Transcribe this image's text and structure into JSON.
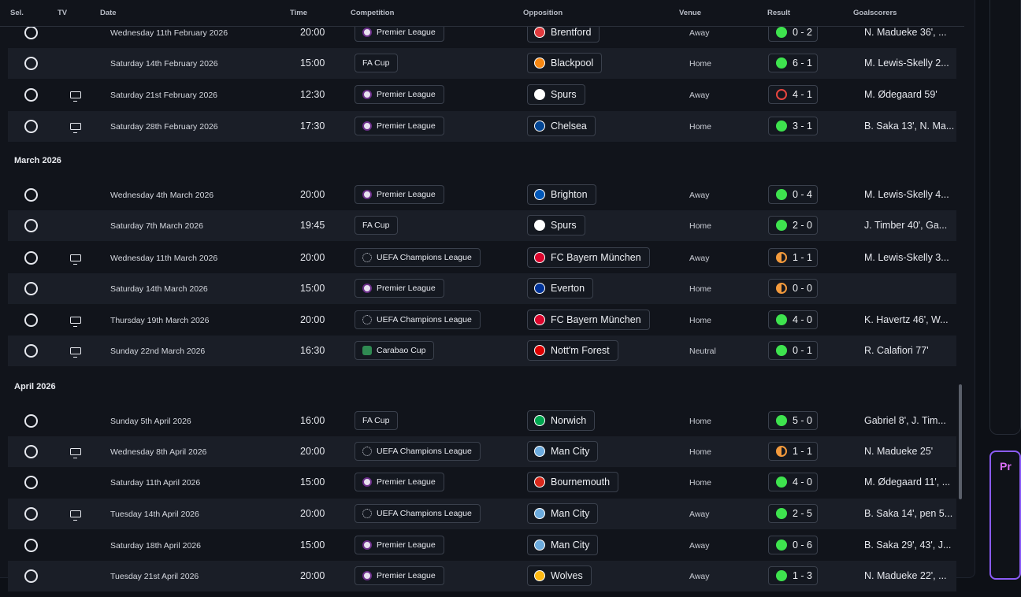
{
  "header": {
    "sel": "Sel.",
    "tv": "TV",
    "date": "Date",
    "time": "Time",
    "competition": "Competition",
    "opposition": "Opposition",
    "venue": "Venue",
    "result": "Result",
    "goalscorers": "Goalscorers"
  },
  "months": {
    "march": "March 2026",
    "april": "April 2026"
  },
  "fixtures": [
    {
      "tv": false,
      "date": "Wednesday 11th February 2026",
      "time": "20:00",
      "competition": "Premier League",
      "comp_icon": "premier-league",
      "opponent": "Brentford",
      "crest_color": "#e03a3e",
      "venue": "Away",
      "outcome": "W",
      "score": "0 - 2",
      "scorers": "N. Madueke 36', ..."
    },
    {
      "tv": false,
      "date": "Saturday 14th February 2026",
      "time": "15:00",
      "competition": "FA Cup",
      "comp_icon": "none",
      "opponent": "Blackpool",
      "crest_color": "#f68712",
      "venue": "Home",
      "outcome": "W",
      "score": "6 - 1",
      "scorers": "M. Lewis-Skelly 2..."
    },
    {
      "tv": true,
      "date": "Saturday 21st February 2026",
      "time": "12:30",
      "competition": "Premier League",
      "comp_icon": "premier-league",
      "opponent": "Spurs",
      "crest_color": "#ffffff",
      "venue": "Away",
      "outcome": "L",
      "score": "4 - 1",
      "scorers": "M. Ødegaard 59'"
    },
    {
      "tv": true,
      "date": "Saturday 28th February 2026",
      "time": "17:30",
      "competition": "Premier League",
      "comp_icon": "premier-league",
      "opponent": "Chelsea",
      "crest_color": "#034694",
      "venue": "Home",
      "outcome": "W",
      "score": "3 - 1",
      "scorers": "B. Saka 13', N. Ma..."
    },
    {
      "tv": false,
      "date": "Wednesday 4th March 2026",
      "time": "20:00",
      "competition": "Premier League",
      "comp_icon": "premier-league",
      "opponent": "Brighton",
      "crest_color": "#0057b8",
      "venue": "Away",
      "outcome": "W",
      "score": "0 - 4",
      "scorers": "M. Lewis-Skelly 4..."
    },
    {
      "tv": false,
      "date": "Saturday 7th March 2026",
      "time": "19:45",
      "competition": "FA Cup",
      "comp_icon": "none",
      "opponent": "Spurs",
      "crest_color": "#ffffff",
      "venue": "Home",
      "outcome": "W",
      "score": "2 - 0",
      "scorers": "J. Timber 40', Ga..."
    },
    {
      "tv": true,
      "date": "Wednesday 11th March 2026",
      "time": "20:00",
      "competition": "UEFA Champions League",
      "comp_icon": "champions-league",
      "opponent": "FC Bayern München",
      "crest_color": "#dc052d",
      "venue": "Away",
      "outcome": "D",
      "score": "1 - 1",
      "scorers": "M. Lewis-Skelly 3..."
    },
    {
      "tv": false,
      "date": "Saturday 14th March 2026",
      "time": "15:00",
      "competition": "Premier League",
      "comp_icon": "premier-league",
      "opponent": "Everton",
      "crest_color": "#003399",
      "venue": "Home",
      "outcome": "D",
      "score": "0 - 0",
      "scorers": ""
    },
    {
      "tv": true,
      "date": "Thursday 19th March 2026",
      "time": "20:00",
      "competition": "UEFA Champions League",
      "comp_icon": "champions-league",
      "opponent": "FC Bayern München",
      "crest_color": "#dc052d",
      "venue": "Home",
      "outcome": "W",
      "score": "4 - 0",
      "scorers": "K. Havertz 46', W..."
    },
    {
      "tv": true,
      "date": "Sunday 22nd March 2026",
      "time": "16:30",
      "competition": "Carabao Cup",
      "comp_icon": "carabao-cup",
      "opponent": "Nott'm Forest",
      "crest_color": "#dd0000",
      "venue": "Neutral",
      "outcome": "W",
      "score": "0 - 1",
      "scorers": "R. Calafiori 77'"
    },
    {
      "tv": false,
      "date": "Sunday 5th April 2026",
      "time": "16:00",
      "competition": "FA Cup",
      "comp_icon": "none",
      "opponent": "Norwich",
      "crest_color": "#00a650",
      "venue": "Home",
      "outcome": "W",
      "score": "5 - 0",
      "scorers": "Gabriel 8', J. Tim..."
    },
    {
      "tv": true,
      "date": "Wednesday 8th April 2026",
      "time": "20:00",
      "competition": "UEFA Champions League",
      "comp_icon": "champions-league",
      "opponent": "Man City",
      "crest_color": "#6cabdd",
      "venue": "Home",
      "outcome": "D",
      "score": "1 - 1",
      "scorers": "N. Madueke 25'"
    },
    {
      "tv": false,
      "date": "Saturday 11th April 2026",
      "time": "15:00",
      "competition": "Premier League",
      "comp_icon": "premier-league",
      "opponent": "Bournemouth",
      "crest_color": "#da291c",
      "venue": "Home",
      "outcome": "W",
      "score": "4 - 0",
      "scorers": "M. Ødegaard 11', ..."
    },
    {
      "tv": true,
      "date": "Tuesday 14th April 2026",
      "time": "20:00",
      "competition": "UEFA Champions League",
      "comp_icon": "champions-league",
      "opponent": "Man City",
      "crest_color": "#6cabdd",
      "venue": "Away",
      "outcome": "W",
      "score": "2 - 5",
      "scorers": "B. Saka 14', pen 5..."
    },
    {
      "tv": false,
      "date": "Saturday 18th April 2026",
      "time": "15:00",
      "competition": "Premier League",
      "comp_icon": "premier-league",
      "opponent": "Man City",
      "crest_color": "#6cabdd",
      "venue": "Away",
      "outcome": "W",
      "score": "0 - 6",
      "scorers": "B. Saka 29', 43', J..."
    },
    {
      "tv": false,
      "date": "Tuesday 21st April 2026",
      "time": "20:00",
      "competition": "Premier League",
      "comp_icon": "premier-league",
      "opponent": "Wolves",
      "crest_color": "#fdb913",
      "venue": "Away",
      "outcome": "W",
      "score": "1 - 3",
      "scorers": "N. Madueke 22', ..."
    }
  ],
  "side_card": {
    "label": "Pr"
  }
}
